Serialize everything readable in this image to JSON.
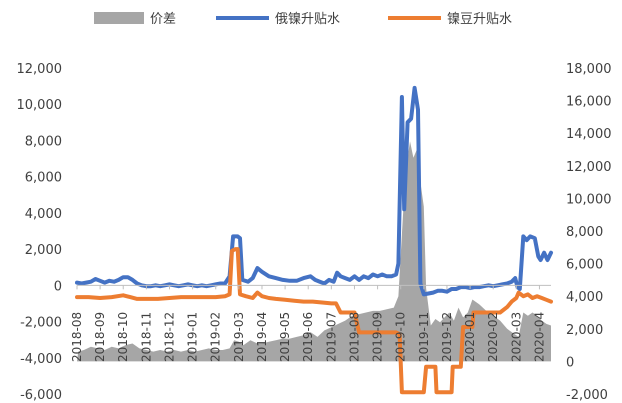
{
  "legend": {
    "spread_label": "价差",
    "russia_label": "俄镍升贴水",
    "bean_label": "镍豆升贴水"
  },
  "chart_data": {
    "type": "line",
    "title": "",
    "x_tick_labels": [
      "2018-08",
      "2018-09",
      "2018-10",
      "2018-11",
      "2018-12",
      "2019-01",
      "2019-02",
      "2019-03",
      "2019-04",
      "2019-05",
      "2019-06",
      "2019-07",
      "2019-08",
      "2019-09",
      "2019-10",
      "2019-11",
      "2019-12",
      "2020-01",
      "2020-02",
      "2020-03",
      "2020-04"
    ],
    "left_axis": {
      "min": -6000,
      "max": 12000,
      "step": 2000,
      "labels": [
        "-6,000",
        "-4,000",
        "-2,000",
        "0",
        "2,000",
        "4,000",
        "6,000",
        "8,000",
        "10,000",
        "12,000"
      ]
    },
    "right_axis": {
      "min": -2000,
      "max": 18000,
      "step": 2000,
      "labels": [
        "-2,000",
        "0",
        "2,000",
        "4,000",
        "6,000",
        "8,000",
        "10,000",
        "12,000",
        "14,000",
        "16,000",
        "18,000"
      ]
    },
    "series": [
      {
        "name": "价差",
        "type": "area",
        "axis": "right",
        "color": "#a6a6a6",
        "points": [
          [
            0,
            0
          ],
          [
            0.05,
            600
          ],
          [
            0.3,
            700
          ],
          [
            0.6,
            900
          ],
          [
            0.9,
            800
          ],
          [
            1.2,
            700
          ],
          [
            1.5,
            900
          ],
          [
            1.8,
            800
          ],
          [
            2.1,
            1000
          ],
          [
            2.4,
            1100
          ],
          [
            2.7,
            800
          ],
          [
            3.0,
            700
          ],
          [
            3.3,
            600
          ],
          [
            3.6,
            700
          ],
          [
            3.9,
            600
          ],
          [
            4.2,
            700
          ],
          [
            4.5,
            600
          ],
          [
            4.8,
            700
          ],
          [
            5.1,
            600
          ],
          [
            5.4,
            700
          ],
          [
            5.7,
            800
          ],
          [
            6.0,
            700
          ],
          [
            6.3,
            700
          ],
          [
            6.6,
            800
          ],
          [
            6.8,
            1300
          ],
          [
            7.0,
            1200
          ],
          [
            7.2,
            1000
          ],
          [
            7.5,
            1300
          ],
          [
            7.8,
            1100
          ],
          [
            8.0,
            1100
          ],
          [
            8.3,
            1200
          ],
          [
            8.6,
            1300
          ],
          [
            8.9,
            1400
          ],
          [
            9.2,
            1400
          ],
          [
            9.5,
            1500
          ],
          [
            9.8,
            1600
          ],
          [
            10.1,
            1800
          ],
          [
            10.4,
            1500
          ],
          [
            10.7,
            1900
          ],
          [
            11.0,
            2100
          ],
          [
            11.3,
            2300
          ],
          [
            11.6,
            2500
          ],
          [
            11.9,
            2800
          ],
          [
            12.2,
            2900
          ],
          [
            12.5,
            3000
          ],
          [
            12.8,
            3100
          ],
          [
            13.1,
            3100
          ],
          [
            13.4,
            3200
          ],
          [
            13.7,
            3300
          ],
          [
            13.9,
            4000
          ],
          [
            14.1,
            9000
          ],
          [
            14.25,
            12000
          ],
          [
            14.4,
            13500
          ],
          [
            14.55,
            12500
          ],
          [
            14.7,
            13000
          ],
          [
            14.85,
            11000
          ],
          [
            15.0,
            9500
          ],
          [
            15.1,
            4500
          ],
          [
            15.3,
            2200
          ],
          [
            15.5,
            2600
          ],
          [
            15.7,
            2400
          ],
          [
            15.9,
            2700
          ],
          [
            16.1,
            3000
          ],
          [
            16.3,
            2500
          ],
          [
            16.5,
            3300
          ],
          [
            16.7,
            2700
          ],
          [
            16.9,
            3000
          ],
          [
            17.1,
            3800
          ],
          [
            17.4,
            3500
          ],
          [
            17.7,
            3100
          ],
          [
            18.0,
            2800
          ],
          [
            18.3,
            2500
          ],
          [
            18.6,
            2000
          ],
          [
            18.9,
            1700
          ],
          [
            19.1,
            1500
          ],
          [
            19.3,
            3000
          ],
          [
            19.5,
            2800
          ],
          [
            19.7,
            3000
          ],
          [
            19.9,
            2800
          ],
          [
            20.1,
            2500
          ],
          [
            20.3,
            2300
          ],
          [
            20.5,
            2200
          ],
          [
            20.5,
            0
          ]
        ]
      },
      {
        "name": "俄镍升贴水",
        "type": "line",
        "axis": "left",
        "color": "#4472c4",
        "points": [
          [
            0,
            150
          ],
          [
            0.2,
            100
          ],
          [
            0.4,
            150
          ],
          [
            0.6,
            200
          ],
          [
            0.8,
            350
          ],
          [
            1.0,
            250
          ],
          [
            1.2,
            150
          ],
          [
            1.4,
            250
          ],
          [
            1.6,
            200
          ],
          [
            1.8,
            300
          ],
          [
            2.0,
            450
          ],
          [
            2.2,
            450
          ],
          [
            2.4,
            300
          ],
          [
            2.6,
            100
          ],
          [
            2.8,
            0
          ],
          [
            3.0,
            -50
          ],
          [
            3.2,
            -50
          ],
          [
            3.4,
            0
          ],
          [
            3.6,
            -50
          ],
          [
            3.8,
            0
          ],
          [
            4.0,
            50
          ],
          [
            4.2,
            0
          ],
          [
            4.4,
            -50
          ],
          [
            4.6,
            0
          ],
          [
            4.8,
            50
          ],
          [
            5.0,
            0
          ],
          [
            5.2,
            -50
          ],
          [
            5.4,
            0
          ],
          [
            5.6,
            -50
          ],
          [
            5.8,
            0
          ],
          [
            6.0,
            50
          ],
          [
            6.2,
            100
          ],
          [
            6.4,
            100
          ],
          [
            6.6,
            500
          ],
          [
            6.75,
            2700
          ],
          [
            6.95,
            2700
          ],
          [
            7.05,
            2600
          ],
          [
            7.15,
            300
          ],
          [
            7.4,
            200
          ],
          [
            7.6,
            400
          ],
          [
            7.8,
            950
          ],
          [
            8.0,
            750
          ],
          [
            8.3,
            500
          ],
          [
            8.6,
            400
          ],
          [
            8.9,
            300
          ],
          [
            9.2,
            250
          ],
          [
            9.5,
            250
          ],
          [
            9.8,
            400
          ],
          [
            10.1,
            500
          ],
          [
            10.3,
            300
          ],
          [
            10.5,
            200
          ],
          [
            10.7,
            100
          ],
          [
            10.9,
            300
          ],
          [
            11.1,
            200
          ],
          [
            11.25,
            700
          ],
          [
            11.4,
            500
          ],
          [
            11.6,
            400
          ],
          [
            11.8,
            300
          ],
          [
            12.0,
            500
          ],
          [
            12.2,
            300
          ],
          [
            12.4,
            500
          ],
          [
            12.6,
            400
          ],
          [
            12.8,
            600
          ],
          [
            13.0,
            500
          ],
          [
            13.2,
            600
          ],
          [
            13.4,
            500
          ],
          [
            13.6,
            500
          ],
          [
            13.8,
            600
          ],
          [
            13.9,
            1200
          ],
          [
            14.05,
            10400
          ],
          [
            14.15,
            4200
          ],
          [
            14.3,
            9000
          ],
          [
            14.45,
            9200
          ],
          [
            14.6,
            10900
          ],
          [
            14.75,
            9700
          ],
          [
            14.85,
            100
          ],
          [
            15.0,
            -500
          ],
          [
            15.2,
            -450
          ],
          [
            15.4,
            -400
          ],
          [
            15.6,
            -300
          ],
          [
            15.8,
            -300
          ],
          [
            16.0,
            -350
          ],
          [
            16.2,
            -200
          ],
          [
            16.4,
            -200
          ],
          [
            16.6,
            -100
          ],
          [
            16.8,
            -100
          ],
          [
            17.0,
            -150
          ],
          [
            17.2,
            -100
          ],
          [
            17.4,
            -100
          ],
          [
            17.6,
            -50
          ],
          [
            17.8,
            0
          ],
          [
            18.0,
            -50
          ],
          [
            18.2,
            0
          ],
          [
            18.4,
            50
          ],
          [
            18.6,
            100
          ],
          [
            18.8,
            200
          ],
          [
            18.95,
            400
          ],
          [
            19.05,
            -100
          ],
          [
            19.15,
            -200
          ],
          [
            19.3,
            2700
          ],
          [
            19.45,
            2500
          ],
          [
            19.6,
            2700
          ],
          [
            19.8,
            2600
          ],
          [
            19.95,
            1600
          ],
          [
            20.05,
            1400
          ],
          [
            20.2,
            1800
          ],
          [
            20.35,
            1400
          ],
          [
            20.5,
            1800
          ]
        ]
      },
      {
        "name": "镍豆升贴水",
        "type": "line",
        "axis": "left",
        "color": "#ed7d31",
        "points": [
          [
            0,
            -650
          ],
          [
            0.5,
            -650
          ],
          [
            1.0,
            -700
          ],
          [
            1.5,
            -650
          ],
          [
            2.0,
            -550
          ],
          [
            2.3,
            -650
          ],
          [
            2.6,
            -750
          ],
          [
            3.0,
            -750
          ],
          [
            3.5,
            -750
          ],
          [
            4.0,
            -700
          ],
          [
            4.5,
            -650
          ],
          [
            5.0,
            -650
          ],
          [
            5.5,
            -650
          ],
          [
            6.0,
            -650
          ],
          [
            6.4,
            -600
          ],
          [
            6.6,
            -500
          ],
          [
            6.7,
            1900
          ],
          [
            6.85,
            2000
          ],
          [
            6.95,
            2000
          ],
          [
            7.05,
            -500
          ],
          [
            7.3,
            -600
          ],
          [
            7.6,
            -700
          ],
          [
            7.8,
            -400
          ],
          [
            8.0,
            -600
          ],
          [
            8.3,
            -700
          ],
          [
            8.6,
            -750
          ],
          [
            9.0,
            -800
          ],
          [
            9.4,
            -850
          ],
          [
            9.8,
            -900
          ],
          [
            10.2,
            -900
          ],
          [
            10.6,
            -950
          ],
          [
            11.0,
            -1000
          ],
          [
            11.2,
            -1000
          ],
          [
            11.4,
            -1500
          ],
          [
            11.7,
            -1500
          ],
          [
            12.0,
            -1500
          ],
          [
            12.2,
            -2600
          ],
          [
            12.6,
            -2600
          ],
          [
            13.0,
            -2600
          ],
          [
            13.4,
            -2600
          ],
          [
            13.8,
            -2600
          ],
          [
            13.95,
            -2700
          ],
          [
            14.05,
            -5900
          ],
          [
            14.6,
            -5900
          ],
          [
            15.0,
            -5900
          ],
          [
            15.1,
            -4500
          ],
          [
            15.3,
            -4500
          ],
          [
            15.5,
            -4500
          ],
          [
            15.55,
            -5900
          ],
          [
            16.2,
            -5900
          ],
          [
            16.25,
            -4500
          ],
          [
            16.4,
            -4500
          ],
          [
            16.6,
            -4500
          ],
          [
            16.7,
            -2300
          ],
          [
            16.9,
            -2300
          ],
          [
            17.1,
            -2300
          ],
          [
            17.15,
            -1500
          ],
          [
            17.4,
            -1500
          ],
          [
            17.7,
            -1500
          ],
          [
            18.0,
            -1500
          ],
          [
            18.3,
            -1500
          ],
          [
            18.6,
            -1200
          ],
          [
            18.8,
            -900
          ],
          [
            19.0,
            -700
          ],
          [
            19.1,
            -400
          ],
          [
            19.3,
            -600
          ],
          [
            19.5,
            -500
          ],
          [
            19.7,
            -700
          ],
          [
            19.9,
            -600
          ],
          [
            20.1,
            -700
          ],
          [
            20.3,
            -800
          ],
          [
            20.5,
            -900
          ]
        ]
      }
    ],
    "legend_position": "top"
  }
}
